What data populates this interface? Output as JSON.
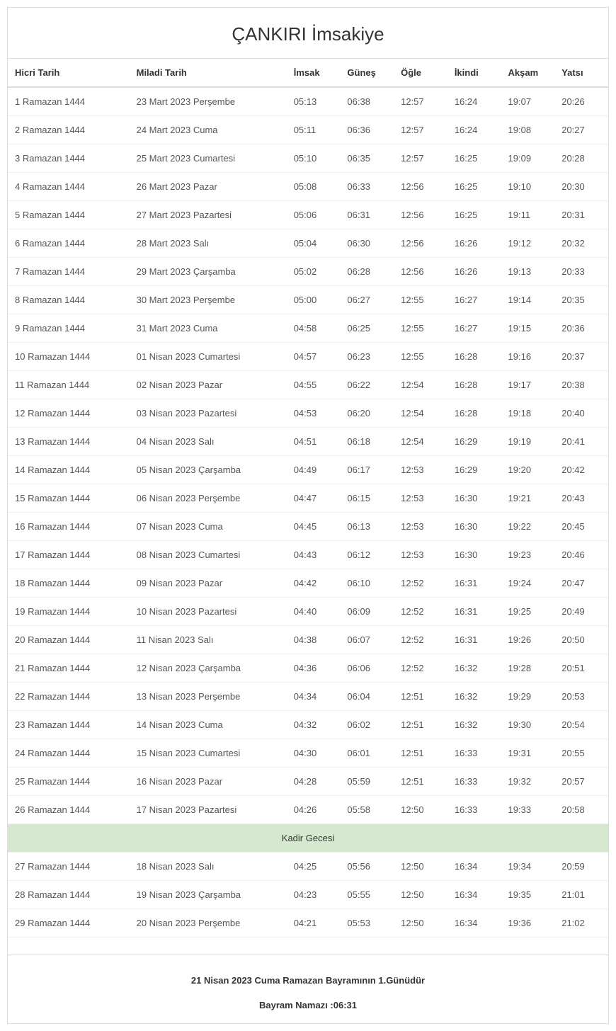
{
  "title": "ÇANKIRI İmsakiye",
  "columns": [
    "Hicri Tarih",
    "Miladi Tarih",
    "İmsak",
    "Güneş",
    "Öğle",
    "İkindi",
    "Akşam",
    "Yatsı"
  ],
  "rows": [
    [
      "1 Ramazan 1444",
      "23 Mart 2023 Perşembe",
      "05:13",
      "06:38",
      "12:57",
      "16:24",
      "19:07",
      "20:26"
    ],
    [
      "2 Ramazan 1444",
      "24 Mart 2023 Cuma",
      "05:11",
      "06:36",
      "12:57",
      "16:24",
      "19:08",
      "20:27"
    ],
    [
      "3 Ramazan 1444",
      "25 Mart 2023 Cumartesi",
      "05:10",
      "06:35",
      "12:57",
      "16:25",
      "19:09",
      "20:28"
    ],
    [
      "4 Ramazan 1444",
      "26 Mart 2023 Pazar",
      "05:08",
      "06:33",
      "12:56",
      "16:25",
      "19:10",
      "20:30"
    ],
    [
      "5 Ramazan 1444",
      "27 Mart 2023 Pazartesi",
      "05:06",
      "06:31",
      "12:56",
      "16:25",
      "19:11",
      "20:31"
    ],
    [
      "6 Ramazan 1444",
      "28 Mart 2023 Salı",
      "05:04",
      "06:30",
      "12:56",
      "16:26",
      "19:12",
      "20:32"
    ],
    [
      "7 Ramazan 1444",
      "29 Mart 2023 Çarşamba",
      "05:02",
      "06:28",
      "12:56",
      "16:26",
      "19:13",
      "20:33"
    ],
    [
      "8 Ramazan 1444",
      "30 Mart 2023 Perşembe",
      "05:00",
      "06:27",
      "12:55",
      "16:27",
      "19:14",
      "20:35"
    ],
    [
      "9 Ramazan 1444",
      "31 Mart 2023 Cuma",
      "04:58",
      "06:25",
      "12:55",
      "16:27",
      "19:15",
      "20:36"
    ],
    [
      "10 Ramazan 1444",
      "01 Nisan 2023 Cumartesi",
      "04:57",
      "06:23",
      "12:55",
      "16:28",
      "19:16",
      "20:37"
    ],
    [
      "11 Ramazan 1444",
      "02 Nisan 2023 Pazar",
      "04:55",
      "06:22",
      "12:54",
      "16:28",
      "19:17",
      "20:38"
    ],
    [
      "12 Ramazan 1444",
      "03 Nisan 2023 Pazartesi",
      "04:53",
      "06:20",
      "12:54",
      "16:28",
      "19:18",
      "20:40"
    ],
    [
      "13 Ramazan 1444",
      "04 Nisan 2023 Salı",
      "04:51",
      "06:18",
      "12:54",
      "16:29",
      "19:19",
      "20:41"
    ],
    [
      "14 Ramazan 1444",
      "05 Nisan 2023 Çarşamba",
      "04:49",
      "06:17",
      "12:53",
      "16:29",
      "19:20",
      "20:42"
    ],
    [
      "15 Ramazan 1444",
      "06 Nisan 2023 Perşembe",
      "04:47",
      "06:15",
      "12:53",
      "16:30",
      "19:21",
      "20:43"
    ],
    [
      "16 Ramazan 1444",
      "07 Nisan 2023 Cuma",
      "04:45",
      "06:13",
      "12:53",
      "16:30",
      "19:22",
      "20:45"
    ],
    [
      "17 Ramazan 1444",
      "08 Nisan 2023 Cumartesi",
      "04:43",
      "06:12",
      "12:53",
      "16:30",
      "19:23",
      "20:46"
    ],
    [
      "18 Ramazan 1444",
      "09 Nisan 2023 Pazar",
      "04:42",
      "06:10",
      "12:52",
      "16:31",
      "19:24",
      "20:47"
    ],
    [
      "19 Ramazan 1444",
      "10 Nisan 2023 Pazartesi",
      "04:40",
      "06:09",
      "12:52",
      "16:31",
      "19:25",
      "20:49"
    ],
    [
      "20 Ramazan 1444",
      "11 Nisan 2023 Salı",
      "04:38",
      "06:07",
      "12:52",
      "16:31",
      "19:26",
      "20:50"
    ],
    [
      "21 Ramazan 1444",
      "12 Nisan 2023 Çarşamba",
      "04:36",
      "06:06",
      "12:52",
      "16:32",
      "19:28",
      "20:51"
    ],
    [
      "22 Ramazan 1444",
      "13 Nisan 2023 Perşembe",
      "04:34",
      "06:04",
      "12:51",
      "16:32",
      "19:29",
      "20:53"
    ],
    [
      "23 Ramazan 1444",
      "14 Nisan 2023 Cuma",
      "04:32",
      "06:02",
      "12:51",
      "16:32",
      "19:30",
      "20:54"
    ],
    [
      "24 Ramazan 1444",
      "15 Nisan 2023 Cumartesi",
      "04:30",
      "06:01",
      "12:51",
      "16:33",
      "19:31",
      "20:55"
    ],
    [
      "25 Ramazan 1444",
      "16 Nisan 2023 Pazar",
      "04:28",
      "05:59",
      "12:51",
      "16:33",
      "19:32",
      "20:57"
    ],
    [
      "26 Ramazan 1444",
      "17 Nisan 2023 Pazartesi",
      "04:26",
      "05:58",
      "12:50",
      "16:33",
      "19:33",
      "20:58"
    ]
  ],
  "special_row_label": "Kadir Gecesi",
  "rows_after_special": [
    [
      "27 Ramazan 1444",
      "18 Nisan 2023 Salı",
      "04:25",
      "05:56",
      "12:50",
      "16:34",
      "19:34",
      "20:59"
    ],
    [
      "28 Ramazan 1444",
      "19 Nisan 2023 Çarşamba",
      "04:23",
      "05:55",
      "12:50",
      "16:34",
      "19:35",
      "21:01"
    ],
    [
      "29 Ramazan 1444",
      "20 Nisan 2023 Perşembe",
      "04:21",
      "05:53",
      "12:50",
      "16:34",
      "19:36",
      "21:02"
    ]
  ],
  "footer": {
    "line1": "21 Nisan 2023 Cuma Ramazan Bayramının 1.Günüdür",
    "line2": "Bayram Namazı :06:31"
  },
  "style": {
    "background_color": "#ffffff",
    "border_color": "#dddddd",
    "row_border_color": "#eeeeee",
    "text_color": "#333333",
    "cell_text_color": "#555555",
    "special_row_bg": "#d7e8d0",
    "title_fontsize": 26,
    "body_fontsize": 13,
    "column_widths": {
      "hicri": 170,
      "miladi": 220,
      "time": 75
    }
  }
}
